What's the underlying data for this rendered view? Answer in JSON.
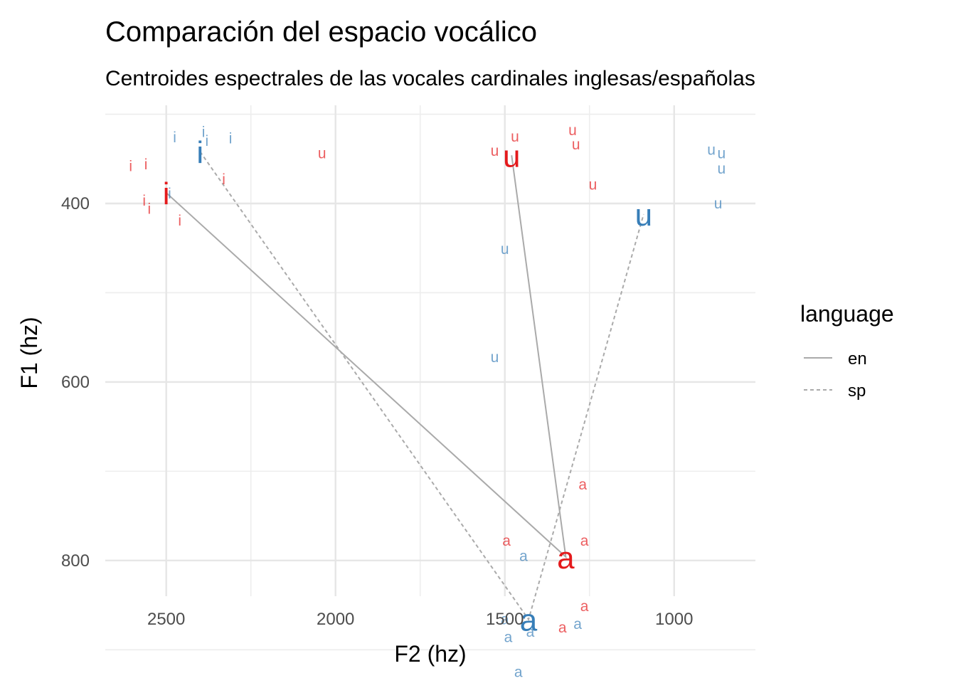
{
  "chart_data": {
    "type": "scatter",
    "title": "Comparación del espacio vocálico",
    "subtitle": "Centroides espectrales de las vocales cardinales inglesas/españolas",
    "xlabel": "F2 (hz)",
    "ylabel": "F1 (hz)",
    "x_reversed": true,
    "y_reversed": true,
    "xlim": [
      2680,
      760
    ],
    "ylim": [
      290,
      840
    ],
    "x_ticks": [
      2500,
      2000,
      1500,
      1000
    ],
    "y_ticks": [
      400,
      600,
      800
    ],
    "grid": true,
    "legend": {
      "title": "language",
      "position": "right",
      "entries": [
        {
          "label": "en",
          "linetype": "solid"
        },
        {
          "label": "sp",
          "linetype": "dashed"
        }
      ]
    },
    "colors": {
      "en": "#e41a1c",
      "sp": "#377eb8",
      "line": "#aaaaaa"
    },
    "centroids": [
      {
        "vowel": "i",
        "language": "en",
        "F2": 2500,
        "F1": 388
      },
      {
        "vowel": "u",
        "language": "en",
        "F2": 1480,
        "F1": 346
      },
      {
        "vowel": "a",
        "language": "en",
        "F2": 1320,
        "F1": 796
      },
      {
        "vowel": "i",
        "language": "sp",
        "F2": 2400,
        "F1": 342
      },
      {
        "vowel": "u",
        "language": "sp",
        "F2": 1090,
        "F1": 412
      },
      {
        "vowel": "a",
        "language": "sp",
        "F2": 1430,
        "F1": 866
      }
    ],
    "tokens": [
      {
        "vowel": "i",
        "language": "en",
        "F2": 2605,
        "F1": 358
      },
      {
        "vowel": "i",
        "language": "en",
        "F2": 2560,
        "F1": 356
      },
      {
        "vowel": "i",
        "language": "en",
        "F2": 2330,
        "F1": 373
      },
      {
        "vowel": "i",
        "language": "en",
        "F2": 2565,
        "F1": 397
      },
      {
        "vowel": "i",
        "language": "en",
        "F2": 2550,
        "F1": 406
      },
      {
        "vowel": "i",
        "language": "en",
        "F2": 2460,
        "F1": 419
      },
      {
        "vowel": "u",
        "language": "en",
        "F2": 2040,
        "F1": 344
      },
      {
        "vowel": "u",
        "language": "en",
        "F2": 1530,
        "F1": 341
      },
      {
        "vowel": "u",
        "language": "en",
        "F2": 1470,
        "F1": 325
      },
      {
        "vowel": "u",
        "language": "en",
        "F2": 1300,
        "F1": 318
      },
      {
        "vowel": "u",
        "language": "en",
        "F2": 1290,
        "F1": 334
      },
      {
        "vowel": "u",
        "language": "en",
        "F2": 1240,
        "F1": 379
      },
      {
        "vowel": "a",
        "language": "en",
        "F2": 1270,
        "F1": 715
      },
      {
        "vowel": "a",
        "language": "en",
        "F2": 1495,
        "F1": 778
      },
      {
        "vowel": "a",
        "language": "en",
        "F2": 1265,
        "F1": 778
      },
      {
        "vowel": "a",
        "language": "en",
        "F2": 1265,
        "F1": 851
      },
      {
        "vowel": "a",
        "language": "en",
        "F2": 1330,
        "F1": 875
      },
      {
        "vowel": "i",
        "language": "sp",
        "F2": 2475,
        "F1": 326
      },
      {
        "vowel": "i",
        "language": "sp",
        "F2": 2390,
        "F1": 320
      },
      {
        "vowel": "i",
        "language": "sp",
        "F2": 2380,
        "F1": 330
      },
      {
        "vowel": "i",
        "language": "sp",
        "F2": 2310,
        "F1": 327
      },
      {
        "vowel": "i",
        "language": "sp",
        "F2": 2490,
        "F1": 389
      },
      {
        "vowel": "u",
        "language": "sp",
        "F2": 890,
        "F1": 340
      },
      {
        "vowel": "u",
        "language": "sp",
        "F2": 860,
        "F1": 344
      },
      {
        "vowel": "u",
        "language": "sp",
        "F2": 860,
        "F1": 361
      },
      {
        "vowel": "u",
        "language": "sp",
        "F2": 870,
        "F1": 400
      },
      {
        "vowel": "u",
        "language": "sp",
        "F2": 1500,
        "F1": 451
      },
      {
        "vowel": "u",
        "language": "sp",
        "F2": 1530,
        "F1": 572
      },
      {
        "vowel": "a",
        "language": "sp",
        "F2": 1445,
        "F1": 795
      },
      {
        "vowel": "a",
        "language": "sp",
        "F2": 1500,
        "F1": 866
      },
      {
        "vowel": "a",
        "language": "sp",
        "F2": 1490,
        "F1": 886
      },
      {
        "vowel": "a",
        "language": "sp",
        "F2": 1285,
        "F1": 871
      },
      {
        "vowel": "a",
        "language": "sp",
        "F2": 1460,
        "F1": 925
      },
      {
        "vowel": "a",
        "language": "sp",
        "F2": 1425,
        "F1": 880
      }
    ]
  }
}
